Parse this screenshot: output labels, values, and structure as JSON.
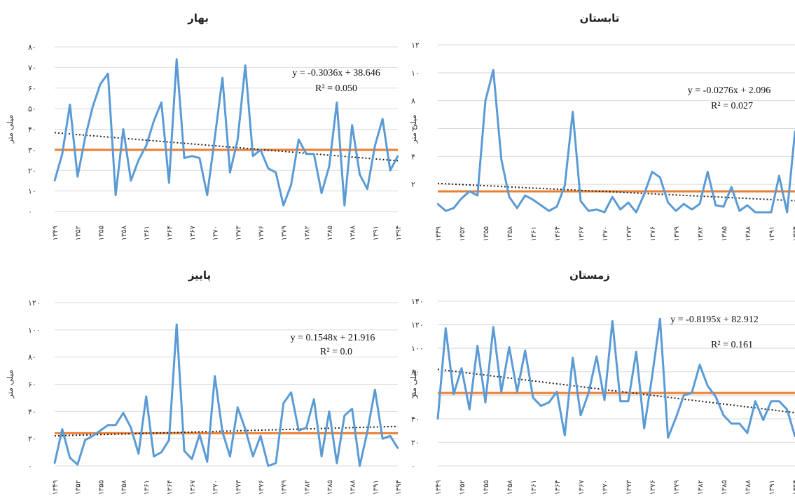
{
  "chart_data": [
    {
      "type": "line",
      "title": "بهار",
      "ylabel": "میلی متر",
      "ylim": [
        0,
        80
      ],
      "yticks": [
        0,
        10,
        20,
        30,
        40,
        50,
        60,
        70,
        80
      ],
      "ytick_labels": [
        "۰",
        "۱۰",
        "۲۰",
        "۳۰",
        "۴۰",
        "۵۰",
        "۶۰",
        "۷۰",
        "۸۰"
      ],
      "x_tick_labels": [
        "۱۳۴۹",
        "۱۳۵۲",
        "۱۳۵۵",
        "۱۳۵۸",
        "۱۳۶۱",
        "۱۳۶۴",
        "۱۳۶۷",
        "۱۳۷۰",
        "۱۳۷۳",
        "۱۳۷۶",
        "۱۳۷۹",
        "۱۳۸۲",
        "۱۳۸۵",
        "۱۳۸۸",
        "۱۳۹۱",
        "۱۳۹۴"
      ],
      "x": [
        1349,
        1350,
        1351,
        1352,
        1353,
        1354,
        1355,
        1356,
        1357,
        1358,
        1359,
        1360,
        1361,
        1362,
        1363,
        1364,
        1365,
        1366,
        1367,
        1368,
        1369,
        1370,
        1371,
        1372,
        1373,
        1374,
        1375,
        1376,
        1377,
        1378,
        1379,
        1380,
        1381,
        1382,
        1383,
        1384,
        1385,
        1386,
        1387,
        1388,
        1389,
        1390,
        1391,
        1392,
        1393,
        1394
      ],
      "values": [
        15,
        28,
        52,
        17,
        36,
        51,
        62,
        67,
        8,
        40,
        15,
        25,
        32,
        44,
        53,
        14,
        74,
        26,
        27,
        26,
        8,
        36,
        65,
        19,
        35,
        71,
        27,
        30,
        21,
        19,
        3,
        13,
        35,
        28,
        28,
        9,
        22,
        53,
        3,
        42,
        18,
        11,
        32,
        45,
        20,
        27
      ],
      "trend": {
        "slope": -0.3036,
        "intercept": 38.646
      },
      "mean": 30,
      "equation": "y = -0.3036x + 38.646",
      "r2": "R² = 0.050",
      "colors": {
        "series": "#5b9bd5",
        "mean": "#ed7d31",
        "trend": "#222222"
      }
    },
    {
      "type": "line",
      "title": "تابستان",
      "ylabel": "میلی متر",
      "ylim": [
        0,
        12
      ],
      "yticks": [
        2,
        4,
        6,
        8,
        10,
        12
      ],
      "ytick_labels": [
        "۲",
        "۴",
        "۶",
        "۸",
        "۱۰",
        "۱۲"
      ],
      "x_tick_labels": [
        "۱۳۴۹",
        "۱۳۵۲",
        "۱۳۵۵",
        "۱۳۵۸",
        "۱۳۶۱",
        "۱۳۶۴",
        "۱۳۶۷",
        "۱۳۷۰",
        "۱۳۷۳",
        "۱۳۷۶",
        "۱۳۷۹",
        "۱۳۸۲",
        "۱۳۸۵",
        "۱۳۸۸",
        "۱۳۹۱",
        "۱۳۹۴"
      ],
      "x": [
        1349,
        1350,
        1351,
        1352,
        1353,
        1354,
        1355,
        1356,
        1357,
        1358,
        1359,
        1360,
        1361,
        1362,
        1363,
        1364,
        1365,
        1366,
        1367,
        1368,
        1369,
        1370,
        1371,
        1372,
        1373,
        1374,
        1375,
        1376,
        1377,
        1378,
        1379,
        1380,
        1381,
        1382,
        1383,
        1384,
        1385,
        1386,
        1387,
        1388,
        1389,
        1390,
        1391,
        1392,
        1393,
        1394
      ],
      "values": [
        0.6,
        0.1,
        0.3,
        1.0,
        1.5,
        1.2,
        8.0,
        10.2,
        3.8,
        1.1,
        0.3,
        1.2,
        0.9,
        0.5,
        0.1,
        0.4,
        1.9,
        7.2,
        0.8,
        0.1,
        0.2,
        0.0,
        1.1,
        0.2,
        0.7,
        0.0,
        1.3,
        2.9,
        2.5,
        0.7,
        0.1,
        0.6,
        0.2,
        0.6,
        2.9,
        0.5,
        0.4,
        1.8,
        0.1,
        0.5,
        0.0,
        0.0,
        0.0,
        2.6,
        0.0,
        5.8
      ],
      "trend": {
        "slope": -0.0276,
        "intercept": 2.096
      },
      "mean": 1.5,
      "equation": "y = -0.0276x + 2.096",
      "r2": "R² = 0.027",
      "colors": {
        "series": "#5b9bd5",
        "mean": "#ed7d31",
        "trend": "#222222"
      }
    },
    {
      "type": "line",
      "title": "پاییز",
      "ylabel": "میلی متر",
      "ylim": [
        0,
        120
      ],
      "yticks": [
        0,
        20,
        40,
        60,
        80,
        100,
        120
      ],
      "ytick_labels": [
        "۰",
        "۲۰",
        "۴۰",
        "۶۰",
        "۸۰",
        "۱۰۰",
        "۱۲۰"
      ],
      "x_tick_labels": [
        "۱۳۴۹",
        "۱۳۵۲",
        "۱۳۵۵",
        "۱۳۵۸",
        "۱۳۶۱",
        "۱۳۶۴",
        "۱۳۶۷",
        "۱۳۷۰",
        "۱۳۷۳",
        "۱۳۷۶",
        "۱۳۷۹",
        "۱۳۸۲",
        "۱۳۸۵",
        "۱۳۸۸",
        "۱۳۹۱",
        "۱۳۹۴"
      ],
      "x": [
        1349,
        1350,
        1351,
        1352,
        1353,
        1354,
        1355,
        1356,
        1357,
        1358,
        1359,
        1360,
        1361,
        1362,
        1363,
        1364,
        1365,
        1366,
        1367,
        1368,
        1369,
        1370,
        1371,
        1372,
        1373,
        1374,
        1375,
        1376,
        1377,
        1378,
        1379,
        1380,
        1381,
        1382,
        1383,
        1384,
        1385,
        1386,
        1387,
        1388,
        1389,
        1390,
        1391,
        1392,
        1393,
        1394
      ],
      "values": [
        2,
        27,
        6,
        1,
        19,
        22,
        26,
        30,
        30,
        39,
        28,
        9,
        51,
        7,
        10,
        19,
        104,
        11,
        5,
        23,
        3,
        66,
        25,
        7,
        43,
        27,
        7,
        22,
        0,
        2,
        46,
        54,
        26,
        28,
        49,
        7,
        40,
        2,
        37,
        42,
        0,
        25,
        56,
        20,
        22,
        13
      ],
      "trend": {
        "slope": 0.1548,
        "intercept": 21.916
      },
      "mean": 24,
      "equation": "y = 0.1548x   + 21.916",
      "r2": "R² = 0.0",
      "colors": {
        "series": "#5b9bd5",
        "mean": "#ed7d31",
        "trend": "#222222"
      }
    },
    {
      "type": "line",
      "title": "زمستان",
      "ylabel": "میلی متر",
      "ylim": [
        0,
        140
      ],
      "yticks": [
        0,
        20,
        40,
        60,
        80,
        100,
        120,
        140
      ],
      "ytick_labels": [
        "۰",
        "۲۰",
        "۴۰",
        "۶۰",
        "۸۰",
        "۱۰۰",
        "۱۲۰",
        "۱۴۰"
      ],
      "x_tick_labels": [
        "۱۳۴۹",
        "۱۳۵۲",
        "۱۳۵۵",
        "۱۳۵۸",
        "۱۳۶۱",
        "۱۳۶۴",
        "۱۳۶۷",
        "۱۳۷۰",
        "۱۳۷۳",
        "۱۳۷۶",
        "۱۳۷۹",
        "۱۳۸۲",
        "۱۳۸۵",
        "۱۳۸۸",
        "۱۳۹۱",
        "۱۳۹۴"
      ],
      "x": [
        1349,
        1350,
        1351,
        1352,
        1353,
        1354,
        1355,
        1356,
        1357,
        1358,
        1359,
        1360,
        1361,
        1362,
        1363,
        1364,
        1365,
        1366,
        1367,
        1368,
        1369,
        1370,
        1371,
        1372,
        1373,
        1374,
        1375,
        1376,
        1377,
        1378,
        1379,
        1380,
        1381,
        1382,
        1383,
        1384,
        1385,
        1386,
        1387,
        1388,
        1389,
        1390,
        1391,
        1392,
        1393,
        1394
      ],
      "values": [
        40,
        117,
        61,
        83,
        48,
        102,
        54,
        118,
        63,
        101,
        63,
        98,
        58,
        51,
        54,
        63,
        26,
        92,
        43,
        62,
        93,
        56,
        123,
        55,
        55,
        97,
        32,
        76,
        125,
        24,
        41,
        60,
        62,
        86,
        68,
        59,
        43,
        36,
        36,
        28,
        55,
        39,
        55,
        55,
        48,
        25
      ],
      "trend": {
        "slope": -0.8195,
        "intercept": 82.912
      },
      "mean": 62,
      "equation": "y = -0.8195x   + 82.912",
      "r2": "R² = 0.161",
      "colors": {
        "series": "#5b9bd5",
        "mean": "#ed7d31",
        "trend": "#222222"
      }
    }
  ]
}
